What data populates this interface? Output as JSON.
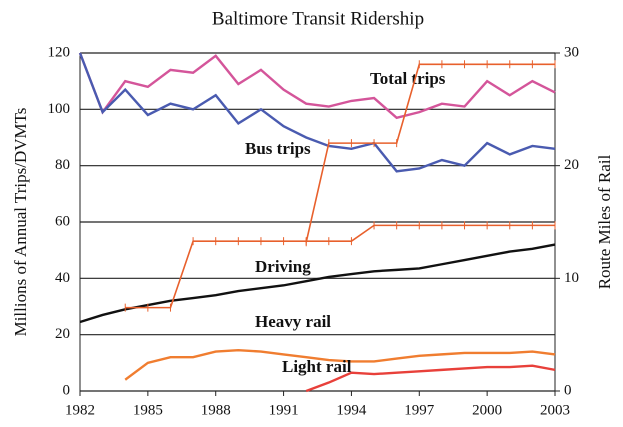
{
  "chart_data": {
    "type": "line",
    "title": "Baltimore Transit Ridership",
    "y_label": "Millions of Annual Trips/DVMTs",
    "y2_label": "Route Miles of Rail",
    "x": [
      1982,
      1983,
      1984,
      1985,
      1986,
      1987,
      1988,
      1989,
      1990,
      1991,
      1992,
      1993,
      1994,
      1995,
      1996,
      1997,
      1998,
      1999,
      2000,
      2001,
      2002,
      2003
    ],
    "xlim": [
      1982,
      2003
    ],
    "xticks": [
      1982,
      1985,
      1988,
      1991,
      1994,
      1997,
      2000,
      2003
    ],
    "ylim": [
      0,
      120
    ],
    "yticks": [
      0,
      20,
      40,
      60,
      80,
      100,
      120
    ],
    "y2lim": [
      0,
      30
    ],
    "y2ticks": [
      0,
      10,
      20,
      30
    ],
    "grid": true,
    "series": [
      {
        "name": "Total trips",
        "color": "#d4559a",
        "values": [
          120,
          99,
          110,
          108,
          114,
          113,
          119,
          109,
          114,
          107,
          102,
          101,
          103,
          104,
          97,
          99,
          102,
          101,
          110,
          105,
          110,
          106
        ]
      },
      {
        "name": "Bus trips",
        "color": "#4a5bb0",
        "values": [
          120,
          99,
          107,
          98,
          102,
          100,
          105,
          95,
          100,
          94,
          90,
          87,
          86,
          88,
          78,
          79,
          82,
          80,
          88,
          84,
          87,
          86
        ]
      },
      {
        "name": "Driving",
        "color": "#111111",
        "values": [
          24.5,
          27,
          29,
          30.5,
          32,
          33,
          34,
          35.5,
          36.5,
          37.5,
          39,
          40.5,
          41.5,
          42.5,
          43,
          43.5,
          45,
          46.5,
          48,
          49.5,
          50.5,
          52
        ]
      },
      {
        "name": "Heavy rail",
        "color": "#f07d30",
        "values": [
          null,
          null,
          4,
          10,
          12,
          12,
          14,
          14.5,
          14,
          13,
          12,
          11,
          10.5,
          10.5,
          11.5,
          12.5,
          13,
          13.5,
          13.5,
          13.5,
          14,
          13
        ]
      },
      {
        "name": "Light rail",
        "color": "#e8403a",
        "values": [
          null,
          null,
          null,
          null,
          null,
          null,
          null,
          null,
          null,
          null,
          0,
          3,
          6.5,
          6,
          6.5,
          7,
          7.5,
          8,
          8.5,
          8.5,
          9,
          7.5
        ]
      },
      {
        "color": "#e8602c",
        "axis": "y2",
        "markers": true,
        "values": [
          null,
          null,
          7.4,
          7.4,
          7.4,
          13.3,
          13.3,
          13.3,
          13.3,
          13.3,
          13.3,
          13.3,
          13.3,
          14.7,
          14.7,
          14.7,
          14.7,
          14.7,
          14.7,
          14.7,
          14.7,
          14.7
        ]
      },
      {
        "color": "#e8602c",
        "axis": "y2",
        "markers": true,
        "values": [
          null,
          null,
          null,
          null,
          null,
          null,
          null,
          null,
          null,
          null,
          13.2,
          22,
          22,
          22,
          22,
          29,
          29,
          29,
          29,
          29,
          29,
          29
        ]
      }
    ]
  }
}
